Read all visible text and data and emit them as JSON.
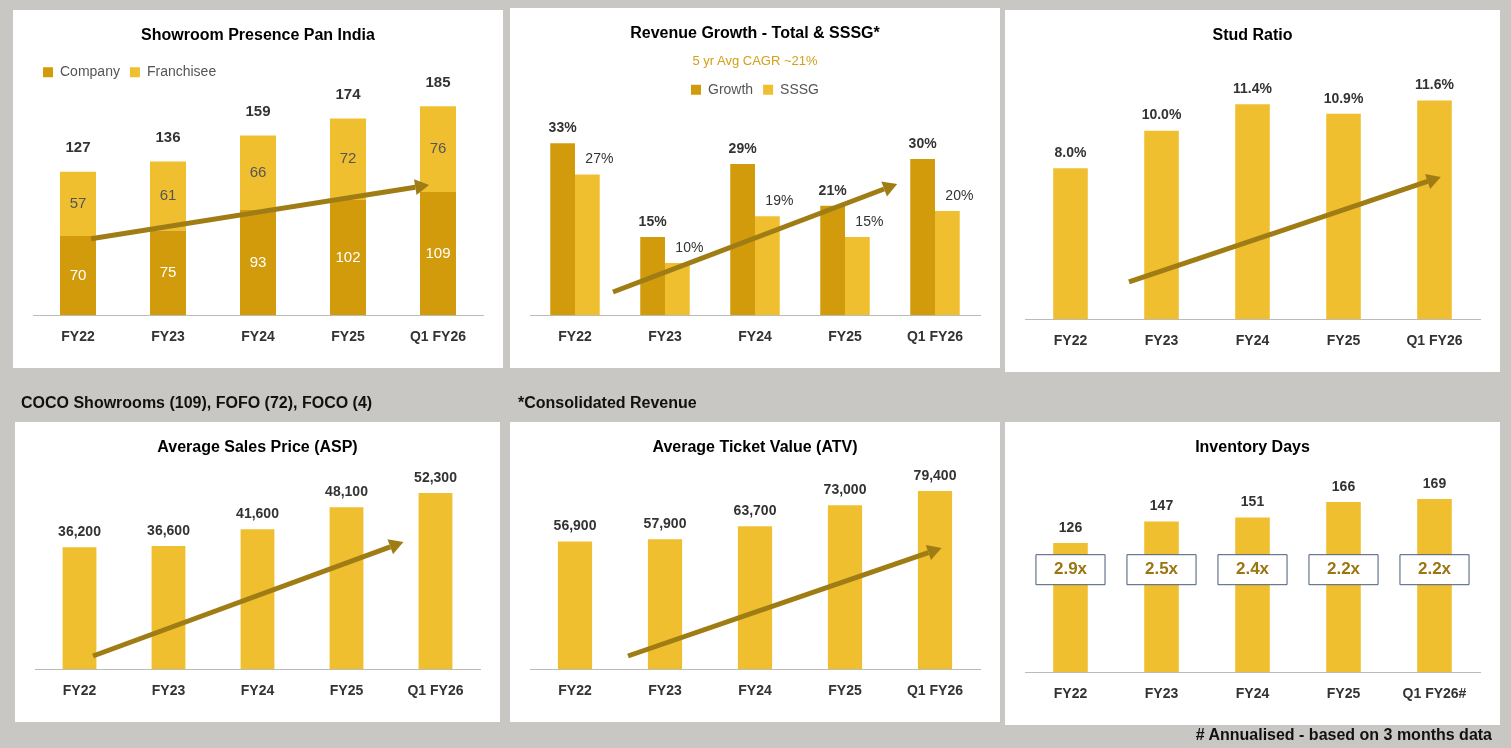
{
  "chart_data": [
    {
      "type": "bar",
      "title": "Showroom Presence Pan India",
      "categories": [
        "FY22",
        "FY23",
        "FY24",
        "FY25",
        "Q1 FY26"
      ],
      "stacked": true,
      "legend": "top left",
      "tick_labels": "x",
      "data_labels": true,
      "totals": [
        "127",
        "136",
        "159",
        "174",
        "185"
      ],
      "series": [
        {
          "name": "Company",
          "color": "#d29b0c",
          "values": [
            70,
            75,
            93,
            102,
            109
          ]
        },
        {
          "name": "Franchisee",
          "color": "#f0bf30",
          "values": [
            57,
            61,
            66,
            72,
            76
          ]
        }
      ],
      "annotations": [
        "COCO Showrooms (109), FOFO (72), FOCO (4)"
      ]
    },
    {
      "type": "bar",
      "title": "Revenue Growth - Total & SSSG*",
      "categories": [
        "FY22",
        "FY23",
        "FY24",
        "FY25",
        "Q1 FY26"
      ],
      "legend": "top",
      "legend_title": "5 yr Avg CAGR ~21%",
      "tick_labels": "x",
      "series": [
        {
          "name": "Growth",
          "color": "#d29b0c",
          "values": [
            33,
            15,
            29,
            21,
            30
          ],
          "value_labels": [
            "33%",
            "15%",
            "29%",
            "21%",
            "30%"
          ]
        },
        {
          "name": "SSSG",
          "color": "#f0bf30",
          "values": [
            27,
            10,
            19,
            15,
            20
          ],
          "value_labels": [
            "27%",
            "10%",
            "19%",
            "15%",
            "20%"
          ]
        }
      ],
      "annotations": [
        "*Consolidated Revenue"
      ]
    },
    {
      "type": "bar",
      "title": "Stud Ratio",
      "categories": [
        "FY22",
        "FY23",
        "FY24",
        "FY25",
        "Q1 FY26"
      ],
      "tick_labels": "x",
      "color": "#f0bf30",
      "values": [
        8.0,
        10.0,
        11.4,
        10.9,
        11.6
      ],
      "value_labels": [
        "8.0%",
        "10.0%",
        "11.4%",
        "10.9%",
        "11.6%"
      ]
    },
    {
      "type": "bar",
      "title": "Average Sales Price (ASP)",
      "categories": [
        "FY22",
        "FY23",
        "FY24",
        "FY25",
        "Q1 FY26"
      ],
      "tick_labels": "x",
      "color": "#f0bf30",
      "values": [
        36200,
        36600,
        41600,
        48100,
        52300
      ],
      "value_labels": [
        "36,200",
        "36,600",
        "41,600",
        "48,100",
        "52,300"
      ]
    },
    {
      "type": "bar",
      "title": "Average Ticket Value (ATV)",
      "categories": [
        "FY22",
        "FY23",
        "FY24",
        "FY25",
        "Q1 FY26"
      ],
      "tick_labels": "x",
      "color": "#f0bf30",
      "values": [
        56900,
        57900,
        63700,
        73000,
        79400
      ],
      "value_labels": [
        "56,900",
        "57,900",
        "63,700",
        "73,000",
        "79,400"
      ]
    },
    {
      "type": "bar",
      "title": "Inventory Days",
      "categories": [
        "FY22",
        "FY23",
        "FY24",
        "FY25",
        "Q1 FY26#"
      ],
      "tick_labels": "x",
      "color": "#f0bf30",
      "data_labels": true,
      "values": [
        126,
        147,
        151,
        166,
        169
      ],
      "annotations": [
        "2.9x",
        "2.5x",
        "2.4x",
        "2.2x",
        "2.2x",
        "# Annualised - based on 3 months data"
      ]
    }
  ]
}
